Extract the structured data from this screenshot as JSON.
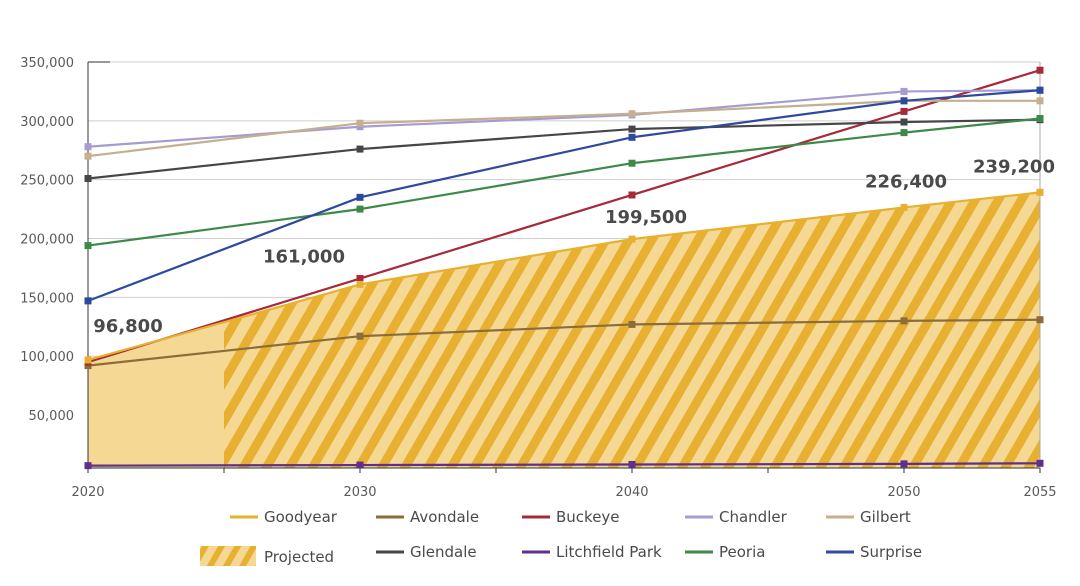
{
  "chart_data": {
    "type": "line",
    "title": "",
    "xlabel": "",
    "ylabel": "",
    "x": [
      2020,
      2030,
      2040,
      2050,
      2055
    ],
    "x_ticks": [
      "2020",
      "2030",
      "2040",
      "2050",
      "2055"
    ],
    "ylim": [
      0,
      350000
    ],
    "y_ticks": [
      {
        "value": 50000,
        "label": "50,000"
      },
      {
        "value": 100000,
        "label": "100,000"
      },
      {
        "value": 150000,
        "label": "150,000"
      },
      {
        "value": 200000,
        "label": "200,000"
      },
      {
        "value": 250000,
        "label": "250,000"
      },
      {
        "value": 300000,
        "label": "300,000"
      },
      {
        "value": 350000,
        "label": "350,000"
      }
    ],
    "grid": true,
    "projected_from": 2025,
    "series": [
      {
        "name": "Goodyear",
        "color": "#e8b030",
        "values": [
          96800,
          161000,
          199500,
          226400,
          239200
        ]
      },
      {
        "name": "Avondale",
        "color": "#8b6d3a",
        "values": [
          92000,
          117000,
          127000,
          130000,
          131000
        ]
      },
      {
        "name": "Buckeye",
        "color": "#a8293a",
        "values": [
          95000,
          166000,
          237000,
          308000,
          343000
        ]
      },
      {
        "name": "Chandler",
        "color": "#a79bd1",
        "values": [
          278000,
          295000,
          305000,
          325000,
          326000
        ]
      },
      {
        "name": "Gilbert",
        "color": "#c4b08e",
        "values": [
          270000,
          298000,
          306000,
          317000,
          317000
        ]
      },
      {
        "name": "Glendale",
        "color": "#464646",
        "values": [
          251000,
          276000,
          293000,
          299000,
          301000
        ]
      },
      {
        "name": "Litchfield Park",
        "color": "#5e2f8c",
        "values": [
          7000,
          7500,
          8000,
          8500,
          9000
        ]
      },
      {
        "name": "Peoria",
        "color": "#3d8a48",
        "values": [
          194000,
          225000,
          264000,
          290000,
          302000
        ]
      },
      {
        "name": "Surprise",
        "color": "#2e4a9c",
        "values": [
          147000,
          235000,
          286000,
          317000,
          326000
        ]
      }
    ],
    "data_labels": [
      {
        "x": 2020,
        "text": "96,800"
      },
      {
        "x": 2030,
        "text": "161,000"
      },
      {
        "x": 2040,
        "text": "199,500"
      },
      {
        "x": 2050,
        "text": "226,400"
      },
      {
        "x": 2055,
        "text": "239,200"
      }
    ],
    "legend": {
      "placement": "bottom",
      "projected_label": "Projected"
    }
  }
}
